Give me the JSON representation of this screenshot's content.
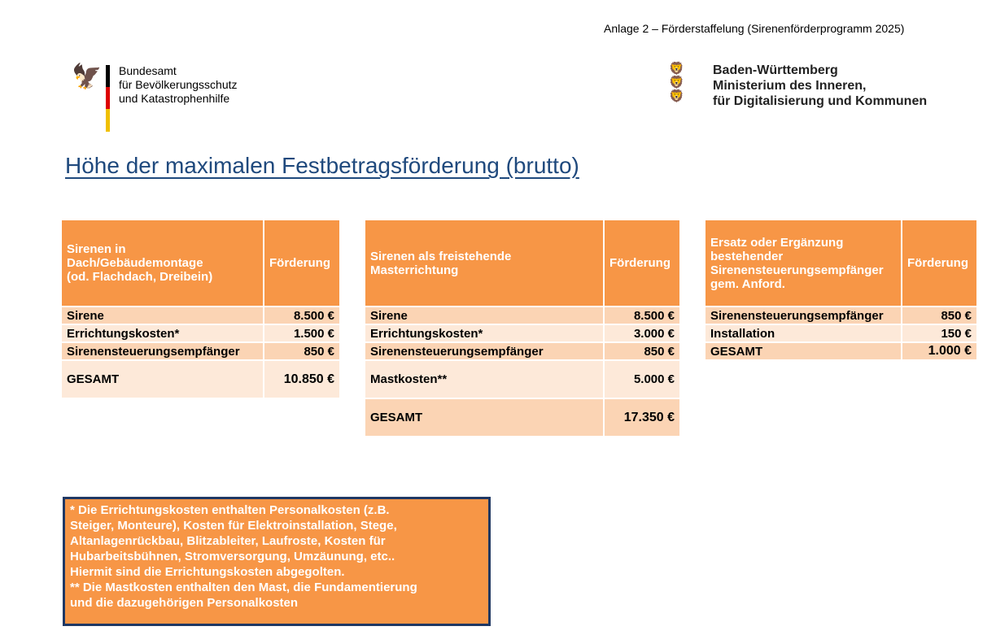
{
  "annex": "Anlage 2 – Förderstaffelung (Sirenenförderprogramm 2025)",
  "logo_left": {
    "lines": [
      "Bundesamt",
      "für Bevölkerungsschutz",
      "und Katastrophenhilfe"
    ]
  },
  "logo_right": {
    "lines": [
      "Baden-Württemberg",
      "Ministerium des Inneren,",
      "für Digitalisierung und Kommunen"
    ]
  },
  "title": "Höhe der maximalen Festbetragsförderung (brutto)",
  "colors": {
    "header": "#F79646",
    "row_dark": "#FBD4B4",
    "row_light": "#FDE9D9",
    "title": "#1F497D"
  },
  "tables": [
    {
      "header": [
        "Sirenen in",
        "Dach/Gebäudemontage",
        "(od. Flachdach, Dreibein)"
      ],
      "col": "Förderung",
      "rows": [
        [
          "Sirene",
          "8.500 €"
        ],
        [
          "Errichtungskosten*",
          "1.500 €"
        ],
        [
          "Sirenensteuerungsempfänger",
          "850 €"
        ],
        [
          "GESAMT",
          "10.850 €"
        ]
      ]
    },
    {
      "header": [
        "Sirenen als freistehende",
        "Masterrichtung"
      ],
      "col": "Förderung",
      "rows": [
        [
          "Sirene",
          "8.500 €"
        ],
        [
          "Errichtungskosten*",
          "3.000 €"
        ],
        [
          "Sirenensteuerungsempfänger",
          "850 €"
        ],
        [
          "Mastkosten**",
          "5.000 €"
        ],
        [
          "GESAMT",
          "17.350 €"
        ]
      ]
    },
    {
      "header": [
        "Ersatz oder Ergänzung",
        "bestehender",
        "Sirenensteuerungsempfänger",
        "gem. Anford."
      ],
      "col": "Förderung",
      "rows": [
        [
          "Sirenensteuerungsempfänger",
          "850 €"
        ],
        [
          "Installation",
          "150 €"
        ],
        [
          "GESAMT",
          "1.000 €"
        ]
      ]
    }
  ],
  "note": [
    "*  Die Errichtungskosten enthalten Personalkosten (z.B.",
    "Steiger, Monteure), Kosten für Elektroinstallation, Stege,",
    "Altanlagenrückbau, Blitzableiter, Laufroste, Kosten für",
    "Hubarbeitsbühnen, Stromversorgung, Umzäunung, etc..",
    "Hiermit sind die Errichtungskosten abgegolten.",
    "** Die Mastkosten enthalten den Mast, die Fundamentierung",
    "und die dazugehörigen Personalkosten"
  ]
}
